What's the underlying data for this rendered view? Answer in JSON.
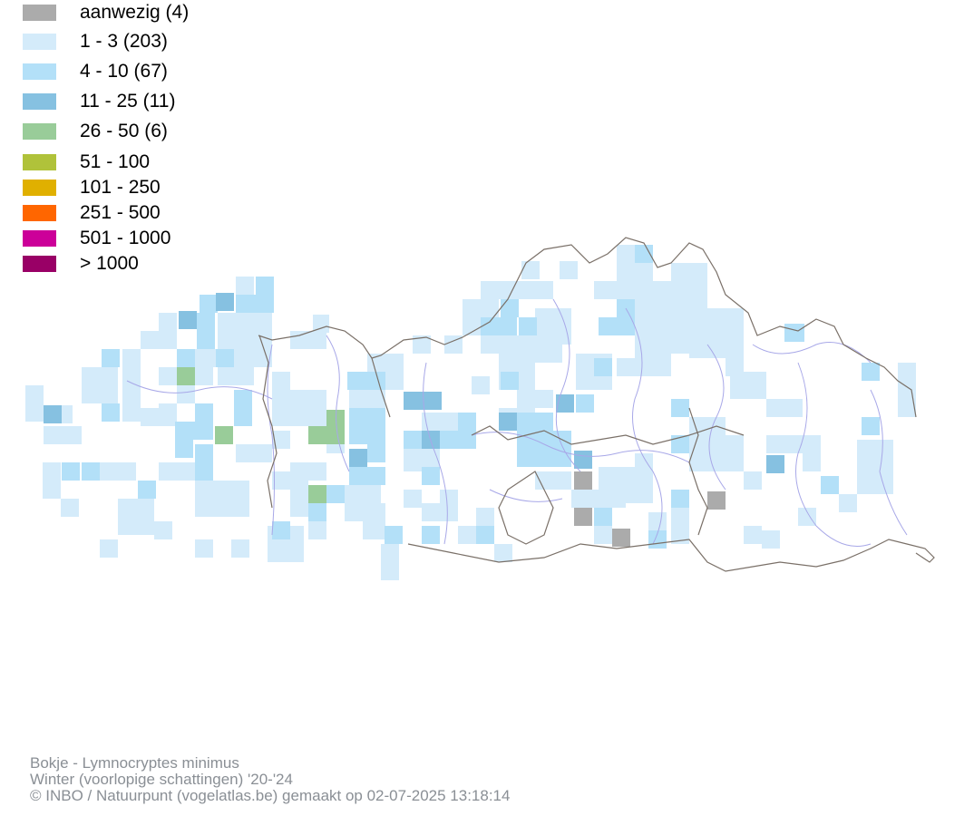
{
  "legend": [
    {
      "label": "aanwezig (4)",
      "color": "#ababab"
    },
    {
      "label": "1 - 3 (203)",
      "color": "#d4ebfa"
    },
    {
      "label": "4 - 10 (67)",
      "color": "#b3e0f8"
    },
    {
      "label": "11 - 25 (11)",
      "color": "#86c1e1"
    },
    {
      "label": "26 - 50 (6)",
      "color": "#99cc99"
    },
    {
      "label": "51 - 100",
      "color": "#b0c23a"
    },
    {
      "label": "101 - 250",
      "color": "#e0b000"
    },
    {
      "label": "251 - 500",
      "color": "#ff6600"
    },
    {
      "label": "501 - 1000",
      "color": "#cc0099"
    },
    {
      "label": "> 1000",
      "color": "#990066"
    }
  ],
  "footer": {
    "line1": "Bokje - Lymnocryptes minimus",
    "line2": "Winter (voorlopige schattingen) '20-'24",
    "line3": "© INBO / Natuurpunt (vogelatlas.be) gemaakt op 02-07-2025 13:18:14"
  },
  "map": {
    "boundary_color": "#7a7068",
    "river_color": "#a8a8e8"
  }
}
